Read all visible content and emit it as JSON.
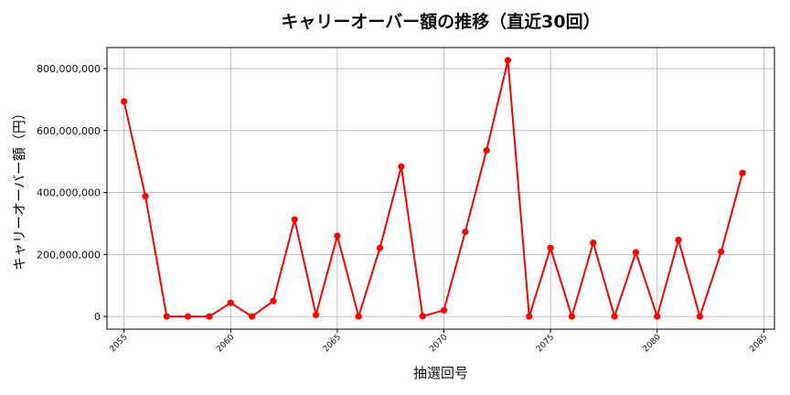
{
  "chart_data": {
    "type": "line",
    "title": "キャリーオーバー額の推移（直近30回）",
    "xlabel": "抽選回号",
    "ylabel": "キャリーオーバー額（円）",
    "x": [
      2055,
      2056,
      2057,
      2058,
      2059,
      2060,
      2061,
      2062,
      2063,
      2064,
      2065,
      2066,
      2067,
      2068,
      2069,
      2070,
      2071,
      2072,
      2073,
      2074,
      2075,
      2076,
      2077,
      2078,
      2079,
      2080,
      2081,
      2082,
      2083,
      2084
    ],
    "series": [
      {
        "name": "キャリーオーバー額",
        "color": "#ff0000",
        "marker": "circle",
        "values": [
          694000000,
          388000000,
          0,
          0,
          0,
          44000000,
          0,
          50000000,
          313000000,
          5000000,
          260000000,
          0,
          221000000,
          484000000,
          1000000,
          20000000,
          273000000,
          536000000,
          827000000,
          0,
          221000000,
          0,
          238000000,
          0,
          207000000,
          0,
          247000000,
          0,
          209000000,
          463000000
        ]
      }
    ],
    "xlim": [
      2054.2,
      2085.5
    ],
    "ylim": [
      -41000000,
      868000000
    ],
    "xticks": [
      2055,
      2060,
      2065,
      2070,
      2075,
      2080,
      2085
    ],
    "xtick_labels": [
      "2055",
      "2060",
      "2065",
      "2070",
      "2075",
      "2080",
      "2085"
    ],
    "yticks": [
      0,
      200000000,
      400000000,
      600000000,
      800000000
    ],
    "ytick_labels": [
      "0",
      "200,000,000",
      "400,000,000",
      "600,000,000",
      "800,000,000"
    ],
    "grid": true,
    "legend": null
  }
}
